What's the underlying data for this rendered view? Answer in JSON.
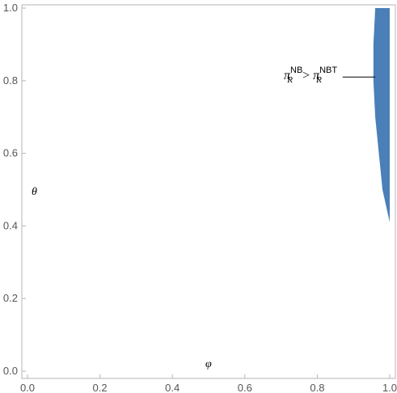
{
  "chart_data": {
    "type": "area",
    "x_axis_label": "φ",
    "y_axis_label": "θ",
    "xlim": [
      0,
      1
    ],
    "ylim": [
      0,
      1
    ],
    "x_ticks": [
      "0.0",
      "0.2",
      "0.4",
      "0.6",
      "0.8",
      "1.0"
    ],
    "y_ticks": [
      "0.0",
      "0.2",
      "0.4",
      "0.6",
      "0.8",
      "1.0"
    ],
    "region_color": "#4a7fb8",
    "region": {
      "description_text": "",
      "upper_y": 1.0,
      "right_x": 1.0,
      "left_boundary": [
        {
          "x": 0.96,
          "y": 1.0
        },
        {
          "x": 0.955,
          "y": 0.9
        },
        {
          "x": 0.955,
          "y": 0.8
        },
        {
          "x": 0.96,
          "y": 0.7
        },
        {
          "x": 0.97,
          "y": 0.6
        },
        {
          "x": 0.98,
          "y": 0.5
        },
        {
          "x": 1.0,
          "y": 0.41
        }
      ]
    },
    "annotation": {
      "pi_left": "π",
      "sub_left": "R",
      "sup_left": "NB",
      "operator": ">",
      "pi_right": "π",
      "sub_right": "R",
      "sup_right": "NBT",
      "leader_from": {
        "x": 0.87,
        "y": 0.81
      },
      "leader_to": {
        "x": 0.96,
        "y": 0.81
      }
    }
  }
}
